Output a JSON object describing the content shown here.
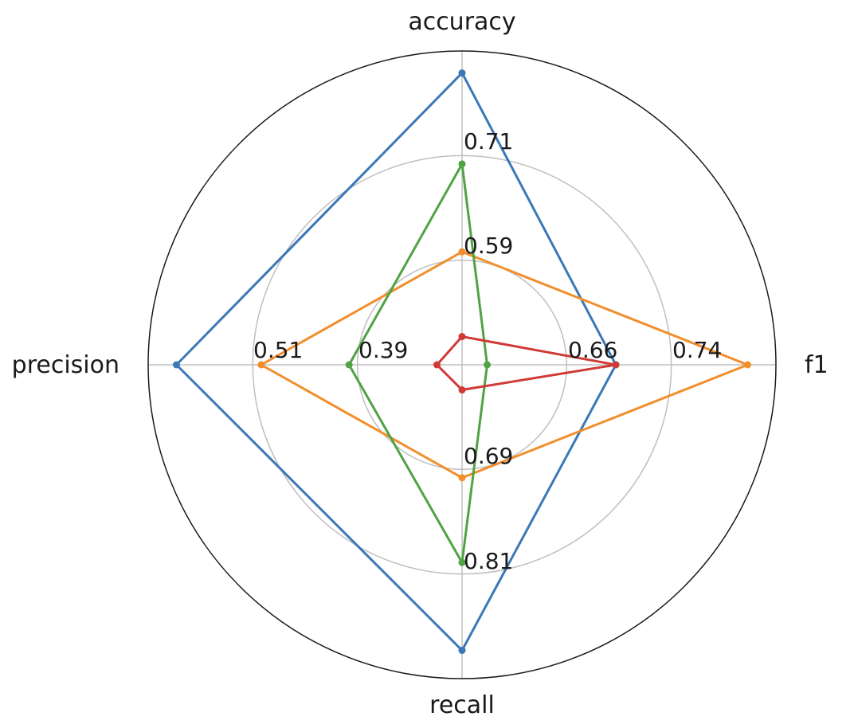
{
  "chart_data": {
    "type": "radar",
    "axes": [
      "accuracy",
      "f1",
      "recall",
      "precision"
    ],
    "ring_tick_labels": {
      "accuracy": [
        "0.59",
        "0.71"
      ],
      "f1": [
        "0.66",
        "0.74"
      ],
      "recall": [
        "0.69",
        "0.81"
      ],
      "precision": [
        "0.39",
        "0.51"
      ]
    },
    "grid": true,
    "series": [
      {
        "color": "#3a78b7",
        "values": [
          0.93,
          0.49,
          0.91,
          0.91
        ]
      },
      {
        "color": "#f28e2b",
        "values": [
          0.36,
          0.91,
          0.36,
          0.64
        ]
      },
      {
        "color": "#4fa343",
        "values": [
          0.64,
          0.08,
          0.63,
          0.36
        ]
      },
      {
        "color": "#d03a36",
        "values": [
          0.09,
          0.49,
          0.08,
          0.08
        ]
      }
    ]
  }
}
